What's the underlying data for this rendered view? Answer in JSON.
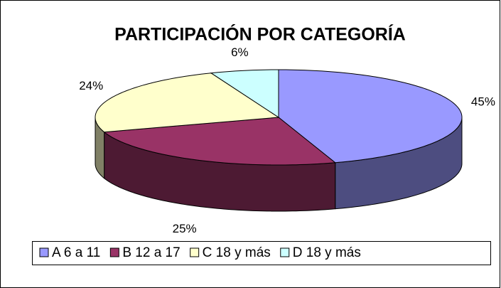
{
  "chart_data": {
    "type": "pie3d",
    "title": "PARTICIPACIÓN POR CATEGORÍA",
    "categories": [
      "A 6 a 11",
      "B 12 a 17",
      "C 18 y más",
      "D 18 y más"
    ],
    "values": [
      45,
      25,
      24,
      6
    ],
    "value_labels": [
      "45%",
      "25%",
      "24%",
      "6%"
    ],
    "colors": [
      "#9999ff",
      "#993366",
      "#ffffcc",
      "#ccffff"
    ],
    "legend": "bottom"
  }
}
